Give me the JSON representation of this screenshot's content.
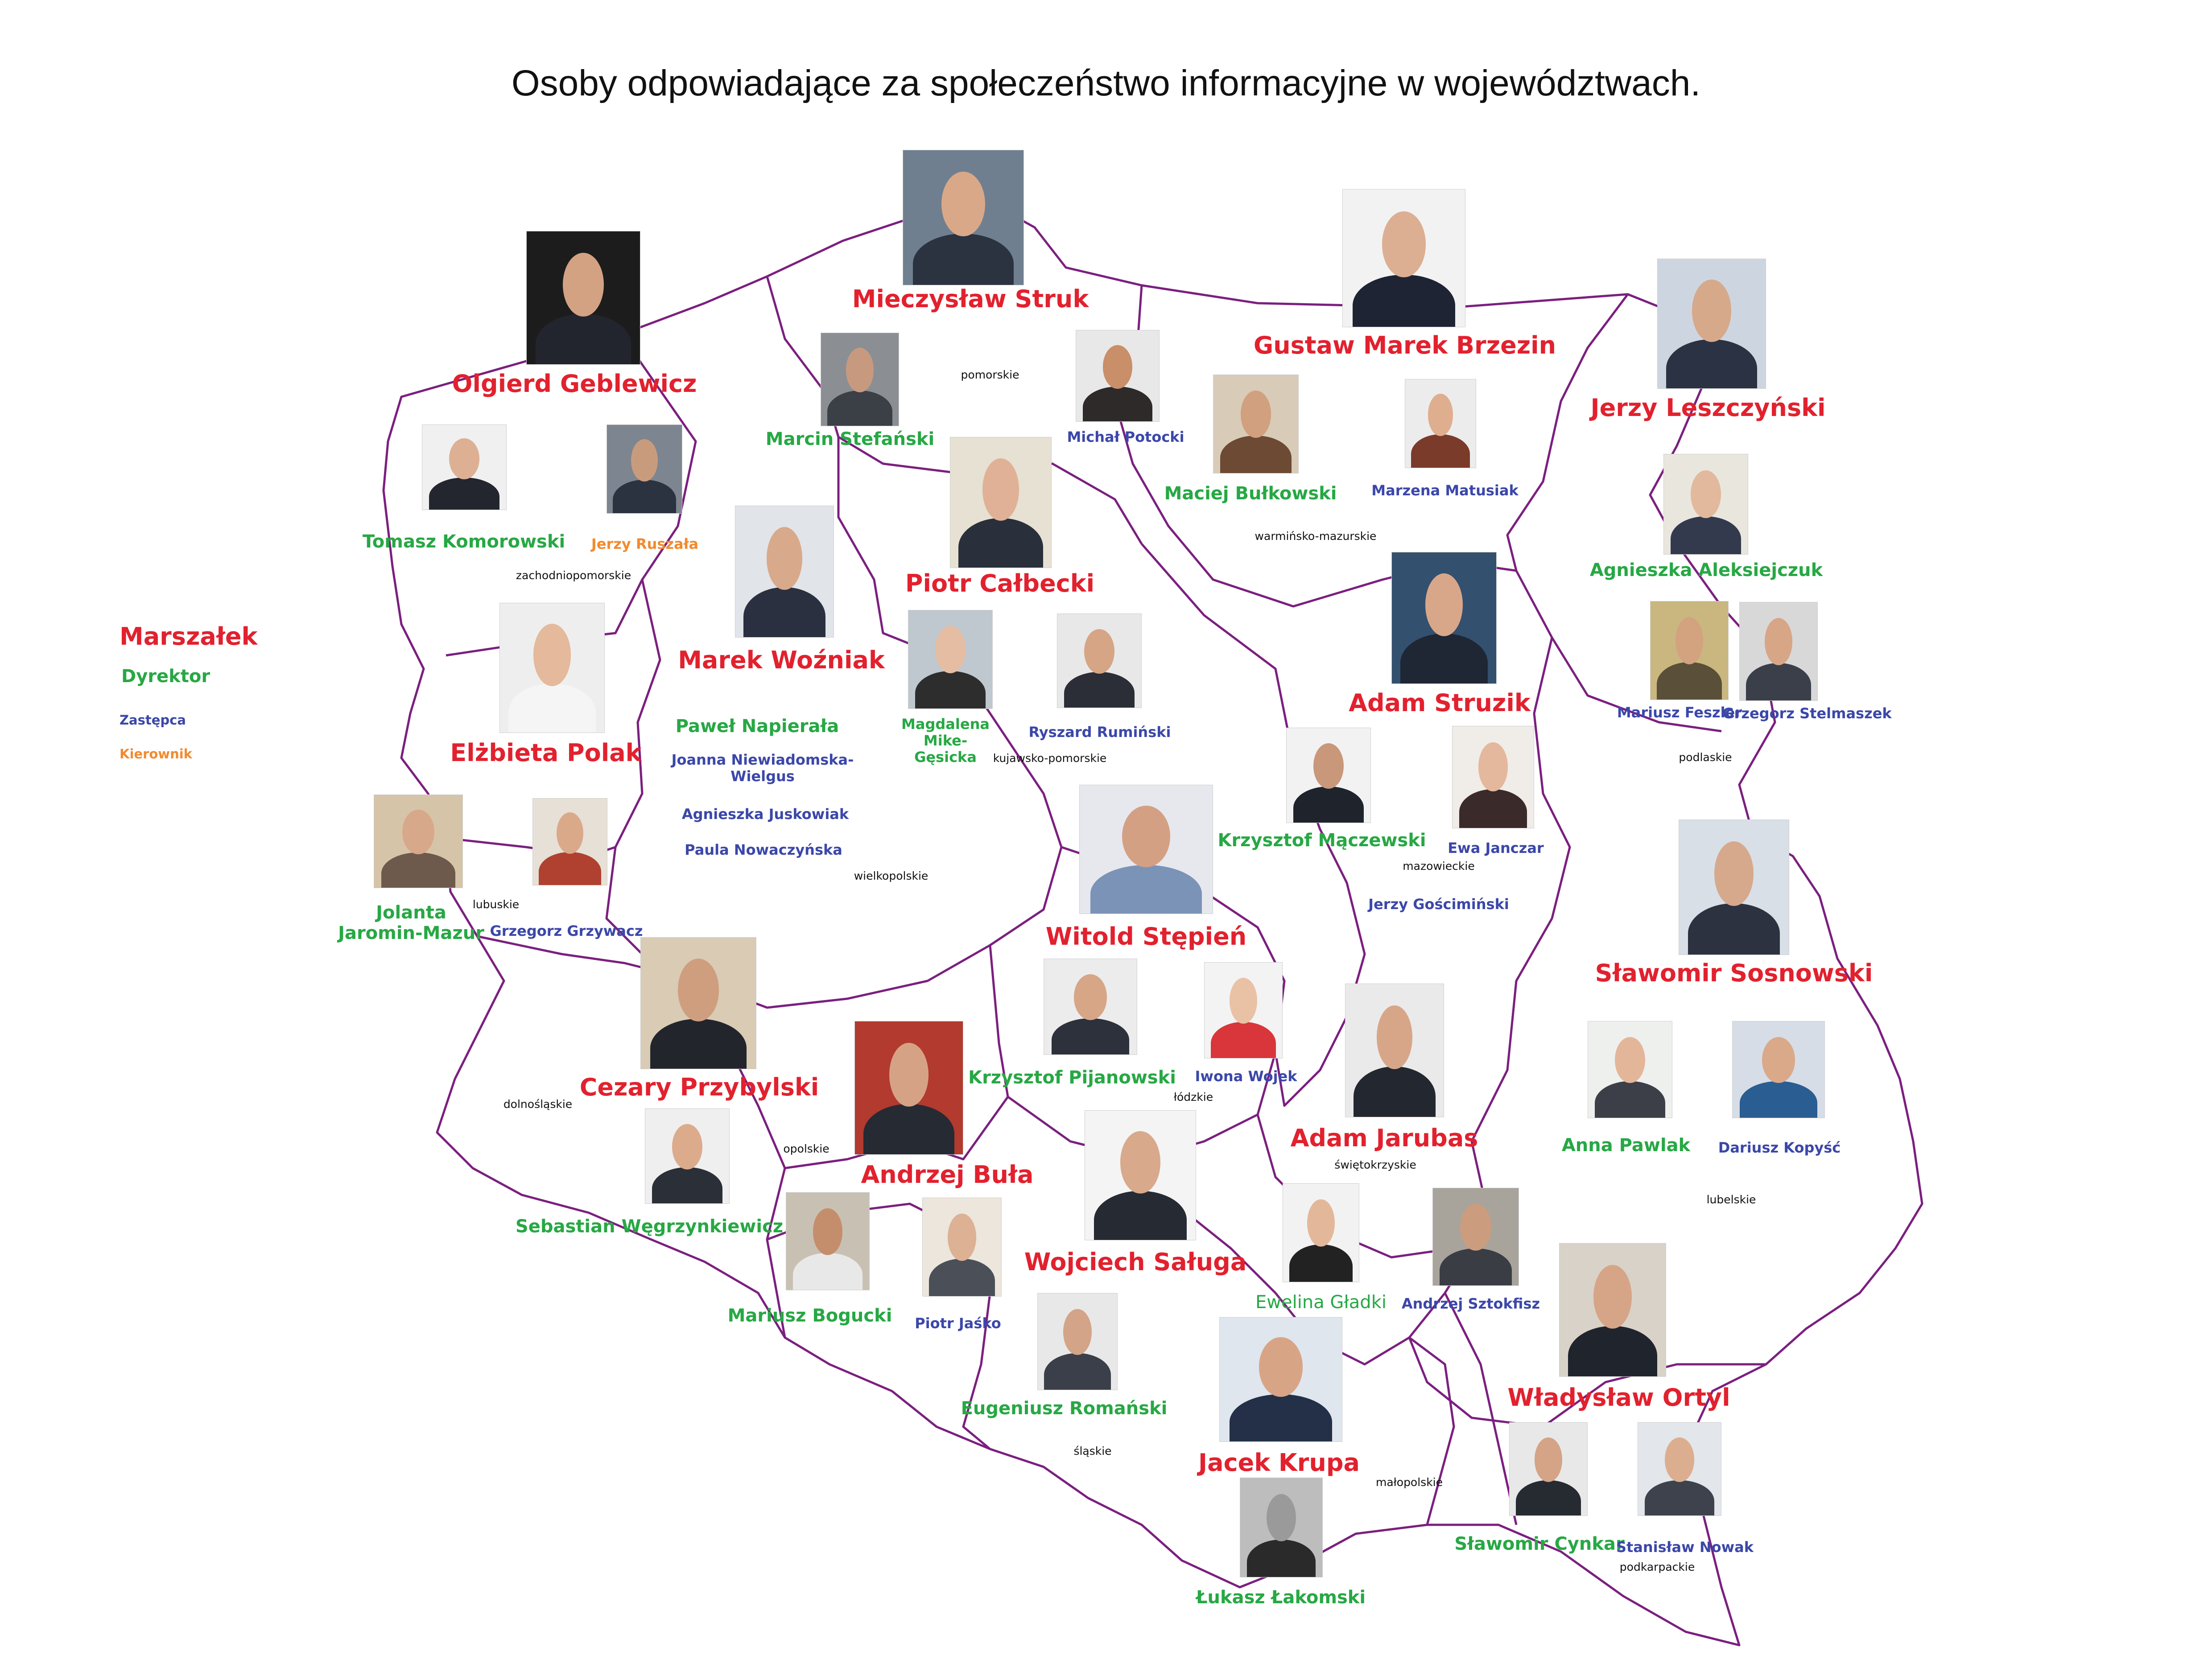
{
  "title": "Osoby odpowiadające za społeczeństwo informacyjne w województwach.",
  "colors": {
    "marszalek": "#e2212e",
    "dyrektor": "#27a844",
    "zastepca": "#3b47a9",
    "kierownik": "#f28a2e",
    "border": "#7b1f7f"
  },
  "legend": {
    "marszalek": "Marszałek",
    "dyrektor": "Dyrektor",
    "zastepca": "Zastępca",
    "kierownik": "Kierownik"
  },
  "regions": {
    "pomorskie": "pomorskie",
    "zachodniopomorskie": "zachodniopomorskie",
    "warminsko": "warmińsko-mazurskie",
    "kujawsko": "kujawsko-pomorskie",
    "podlaskie": "podlaskie",
    "lubuskie": "lubuskie",
    "wielkopolskie": "wielkopolskie",
    "mazowieckie": "mazowieckie",
    "dolnoslaskie": "dolnośląskie",
    "opolskie": "opolskie",
    "lodzkie": "łódzkie",
    "swietokrzyskie": "świętokrzyskie",
    "lubelskie": "lubelskie",
    "slaskie": "śląskie",
    "malopolskie": "małopolskie",
    "podkarpackie": "podkarpackie"
  },
  "people": {
    "struk": "Mieczysław Struk",
    "stefanski": "Marcin Stefański",
    "potocki": "Michał Potocki",
    "brzezin": "Gustaw Marek Brzezin",
    "bulkowski": "Maciej Bułkowski",
    "matusiak": "Marzena Matusiak",
    "geblewicz": "Olgierd Geblewicz",
    "komorowski": "Tomasz Komorowski",
    "ruszala": "Jerzy Ruszała",
    "leszczynski": "Jerzy Leszczyński",
    "aleksiejczuk": "Agnieszka Aleksiejczuk",
    "feszler": "Mariusz Feszler",
    "stelmaszek": "Grzegorz Stelmaszek",
    "calbecki": "Piotr Całbecki",
    "mike_gesicka": "Magdalena Mike-Gęsicka",
    "ruminski": "Ryszard Rumiński",
    "wozniak": "Marek Woźniak",
    "napierala": "Paweł Napierała",
    "niewiadomska": "Joanna Niewiadomska-Wielgus",
    "juskowiak": "Agnieszka Juskowiak",
    "nowaczynska": "Paula Nowaczyńska",
    "polak": "Elżbieta Polak",
    "jaromin": "Jolanta Jaromin-Mazur",
    "grzywacz": "Grzegorz Grzywacz",
    "struzik": "Adam Struzik",
    "maczewski": "Krzysztof Mączewski",
    "janczar": "Ewa Janczar",
    "goscimiński": "Jerzy Gościmiński",
    "stepien": "Witold Stępień",
    "pijanowski": "Krzysztof Pijanowski",
    "wojek": "Iwona Wojek",
    "sosnowski": "Sławomir Sosnowski",
    "pawlak": "Anna Pawlak",
    "kopysc": "Dariusz Kopyść",
    "przybylski": "Cezary Przybylski",
    "wegrzynkiewicz": "Sebastian Węgrzynkiewicz",
    "bula": "Andrzej Buła",
    "bogucki": "Mariusz Bogucki",
    "jasko": "Piotr Jaśko",
    "jarubas": "Adam Jarubas",
    "sztokfisz": "Andrzej Sztokfisz",
    "gladki": "Ewelina Gładki",
    "saluga": "Wojciech Saługa",
    "romanski": "Eugeniusz Romański",
    "krupa": "Jacek Krupa",
    "lakomski": "Łukasz Łakomski",
    "ortyl": "Władysław Ortyl",
    "cynkar": "Sławomir Cynkar",
    "nowak": "Stanisław Nowak"
  },
  "photos": [
    {
      "id": "struk",
      "bg": "#6f7f8f",
      "skin": "#d9a888",
      "suit": "#2b3240"
    },
    {
      "id": "stefanski",
      "bg": "#8b8f93",
      "skin": "#c79a80",
      "suit": "#3b3f46"
    },
    {
      "id": "potocki",
      "bg": "#e8e8e8",
      "skin": "#c98f68",
      "suit": "#2f2a2a"
    },
    {
      "id": "brzezin",
      "bg": "#f2f2f2",
      "skin": "#dcae92",
      "suit": "#1e2433"
    },
    {
      "id": "bulkowski",
      "bg": "#d8cbb8",
      "skin": "#d1a07f",
      "suit": "#6d4a34"
    },
    {
      "id": "matusiak",
      "bg": "#ececec",
      "skin": "#dfae8f",
      "suit": "#7a3b2a"
    },
    {
      "id": "geblewicz",
      "bg": "#1c1c1c",
      "skin": "#d2a283",
      "suit": "#22252d"
    },
    {
      "id": "komorowski",
      "bg": "#f0f0f0",
      "skin": "#ddb094",
      "suit": "#23262e"
    },
    {
      "id": "ruszala",
      "bg": "#7d8590",
      "skin": "#c99b7d",
      "suit": "#2c3340"
    },
    {
      "id": "leszczynski",
      "bg": "#cdd6e0",
      "skin": "#d7a98b",
      "suit": "#2a3244"
    },
    {
      "id": "aleksiejczuk",
      "bg": "#e9e6de",
      "skin": "#e2b99c",
      "suit": "#333a4d"
    },
    {
      "id": "feszler",
      "bg": "#c9b77f",
      "skin": "#d3a27f",
      "suit": "#5a4f39"
    },
    {
      "id": "stelmaszek",
      "bg": "#d8d8d8",
      "skin": "#d7a687",
      "suit": "#3a3f4a"
    },
    {
      "id": "calbecki",
      "bg": "#e6e1d2",
      "skin": "#e0b196",
      "suit": "#2a2f3c"
    },
    {
      "id": "mike_gesicka",
      "bg": "#bfc7cf",
      "skin": "#e5bda2",
      "suit": "#2d2d2d"
    },
    {
      "id": "ruminski",
      "bg": "#e8e8e8",
      "skin": "#d6a585",
      "suit": "#2b2e36"
    },
    {
      "id": "wozniak",
      "bg": "#e1e4e8",
      "skin": "#d8a98b",
      "suit": "#2a3040"
    },
    {
      "id": "polak",
      "bg": "#eeeeee",
      "skin": "#e4b99c",
      "suit": "#f5f5f5"
    },
    {
      "id": "jaromin",
      "bg": "#d6c4a8",
      "skin": "#d8a88a",
      "suit": "#6e5a4c"
    },
    {
      "id": "grzywacz",
      "bg": "#e6e0d6",
      "skin": "#d9a98a",
      "suit": "#b04030"
    },
    {
      "id": "struzik",
      "bg": "#34506f",
      "skin": "#d8a789",
      "suit": "#1f2634"
    },
    {
      "id": "maczewski",
      "bg": "#f2f2f2",
      "skin": "#c9977a",
      "suit": "#1f232b"
    },
    {
      "id": "janczar",
      "bg": "#f0ece8",
      "skin": "#e4b89c",
      "suit": "#3a2a2a"
    },
    {
      "id": "stepien",
      "bg": "#e6e8ee",
      "skin": "#d4a083",
      "suit": "#7c93b8"
    },
    {
      "id": "pijanowski",
      "bg": "#ececec",
      "skin": "#d6a687",
      "suit": "#2c313b"
    },
    {
      "id": "wojek",
      "bg": "#f3f3f3",
      "skin": "#e9c2a6",
      "suit": "#d8363b"
    },
    {
      "id": "sosnowski",
      "bg": "#d9dfe6",
      "skin": "#d6a98d",
      "suit": "#2c3240"
    },
    {
      "id": "pawlak",
      "bg": "#eef0ee",
      "skin": "#e3b699",
      "suit": "#3c3f48"
    },
    {
      "id": "kopysc",
      "bg": "#d6dde6",
      "skin": "#d9a989",
      "suit": "#2a5d92"
    },
    {
      "id": "przybylski",
      "bg": "#d9cbb4",
      "skin": "#cf9e7f",
      "suit": "#22252c"
    },
    {
      "id": "wegrzynkiewicz",
      "bg": "#efefef",
      "skin": "#dcab8c",
      "suit": "#2b2f38"
    },
    {
      "id": "bula",
      "bg": "#b23a2e",
      "skin": "#d6a285",
      "suit": "#262a33"
    },
    {
      "id": "bogucki",
      "bg": "#c9c0b4",
      "skin": "#c48e6c",
      "suit": "#e8e8e8"
    },
    {
      "id": "jasko",
      "bg": "#ece6dc",
      "skin": "#ddb193",
      "suit": "#4a4f58"
    },
    {
      "id": "jarubas",
      "bg": "#eaeaea",
      "skin": "#d7a688",
      "suit": "#23272f"
    },
    {
      "id": "sztokfisz",
      "bg": "#a8a49c",
      "skin": "#cc9c7e",
      "suit": "#3a3d44"
    },
    {
      "id": "gladki",
      "bg": "#f2f2f2",
      "skin": "#e3b89a",
      "suit": "#222222"
    },
    {
      "id": "saluga",
      "bg": "#f4f4f4",
      "skin": "#d8a98b",
      "suit": "#262a33"
    },
    {
      "id": "romanski",
      "bg": "#e8e8e8",
      "skin": "#d3a487",
      "suit": "#3a3f49"
    },
    {
      "id": "krupa",
      "bg": "#dfe6ee",
      "skin": "#d7a586",
      "suit": "#233047"
    },
    {
      "id": "lakomski",
      "bg": "#bdbdbd",
      "skin": "#9a9a9a",
      "suit": "#2a2a2a"
    },
    {
      "id": "ortyl",
      "bg": "#d9d2c8",
      "skin": "#d6a587",
      "suit": "#20242c"
    },
    {
      "id": "cynkar",
      "bg": "#e8e8e8",
      "skin": "#d5a386",
      "suit": "#262a31"
    },
    {
      "id": "nowak",
      "bg": "#e3e6ea",
      "skin": "#dbae90",
      "suit": "#3d424c"
    }
  ]
}
